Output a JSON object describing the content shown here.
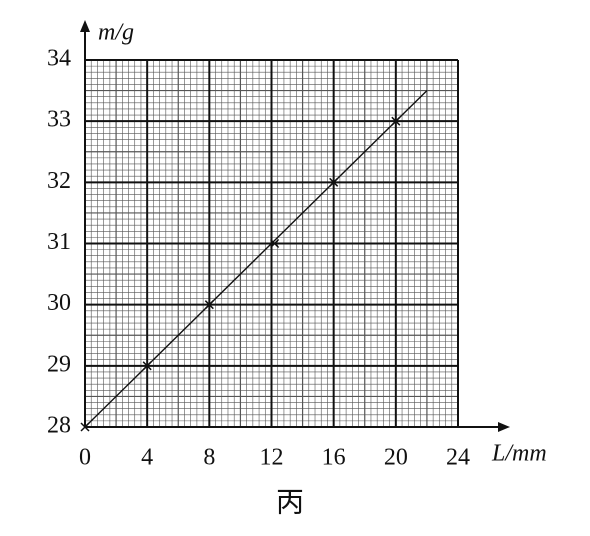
{
  "chart_data": {
    "type": "scatter",
    "x_label": "L/mm",
    "y_label": "m/g",
    "caption": "丙",
    "x": [
      0,
      4,
      8,
      12.2,
      16,
      20
    ],
    "values": [
      28,
      29,
      30,
      31,
      32,
      33
    ],
    "fit_line": {
      "x": [
        0,
        22
      ],
      "y": [
        28,
        33.5
      ]
    },
    "xlim": [
      0,
      24
    ],
    "ylim": [
      28,
      34
    ],
    "xticks": [
      0,
      4,
      8,
      12,
      16,
      20,
      24
    ],
    "yticks": [
      28,
      29,
      30,
      31,
      32,
      33,
      34
    ],
    "grid": true,
    "color": "#111111"
  }
}
